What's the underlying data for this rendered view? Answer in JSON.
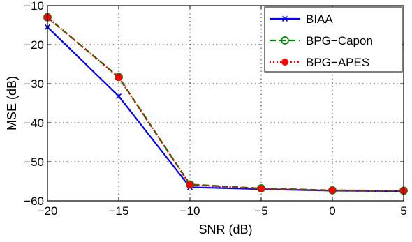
{
  "chart_data": {
    "type": "line",
    "title": "",
    "xlabel": "SNR (dB)",
    "ylabel": "MSE (dB)",
    "xlim": [
      -20,
      5
    ],
    "ylim": [
      -60,
      -10
    ],
    "xticks": [
      -20,
      -15,
      -10,
      -5,
      0,
      5
    ],
    "yticks": [
      -10,
      -20,
      -30,
      -40,
      -50,
      -60
    ],
    "xtick_labels": [
      "−20",
      "−15",
      "−10",
      "−5",
      "0",
      "5"
    ],
    "ytick_labels": [
      "−10",
      "−20",
      "−30",
      "−40",
      "−50",
      "−60"
    ],
    "grid": true,
    "legend_position": "top-right",
    "x": [
      -20,
      -15,
      -10,
      -5,
      0,
      5
    ],
    "series": [
      {
        "name": "BIAA",
        "values": [
          -15.5,
          -33.2,
          -56.5,
          -57.0,
          -57.4,
          -57.5
        ],
        "color": "#0000ff",
        "line_style": "solid",
        "marker": "x"
      },
      {
        "name": "BPG−Capon",
        "values": [
          -13.0,
          -28.3,
          -55.8,
          -56.8,
          -57.3,
          -57.4
        ],
        "color": "#007f00",
        "line_style": "dashed",
        "marker": "o"
      },
      {
        "name": "BPG−APES",
        "values": [
          -13.0,
          -28.4,
          -55.9,
          -56.9,
          -57.3,
          -57.4
        ],
        "color": "#ff0000",
        "line_style": "dotted",
        "marker": "filled-circle"
      }
    ]
  }
}
